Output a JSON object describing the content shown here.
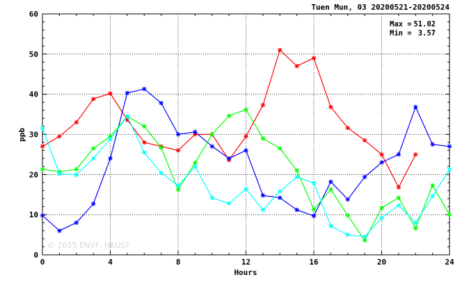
{
  "chart_data": {
    "type": "line",
    "title": "Tuen Mun, 03 20200521-20200524",
    "xlabel": "Hours",
    "ylabel": "ppb",
    "xlim": [
      0,
      24
    ],
    "ylim": [
      0,
      60
    ],
    "xticks": [
      "0",
      "4",
      "8",
      "12",
      "16",
      "20",
      "24"
    ],
    "yticks": [
      "0",
      "10",
      "20",
      "30",
      "40",
      "50",
      "60"
    ],
    "grid": true,
    "legend": "none",
    "annotations": {
      "max_label": "Max =",
      "max_value": "51.02",
      "min_label": "Min =",
      "min_value": "3.57"
    },
    "watermark": "© 2025  ENVF, HKUST",
    "x": [
      0,
      1,
      2,
      3,
      4,
      5,
      6,
      7,
      8,
      9,
      10,
      11,
      12,
      13,
      14,
      15,
      16,
      17,
      18,
      19,
      20,
      21,
      22,
      23,
      24
    ],
    "series": [
      {
        "color": "#ff0000",
        "values": [
          27,
          29.5,
          33,
          38.8,
          40.2,
          33.6,
          28,
          27,
          26,
          30,
          30,
          23.6,
          29.5,
          37.3,
          51,
          47,
          49,
          36.8,
          31.6,
          28.5,
          25,
          16.8,
          25,
          null,
          null
        ]
      },
      {
        "color": "#0000ff",
        "values": [
          9.8,
          6,
          8,
          12.7,
          24,
          40.3,
          41.3,
          37.8,
          30,
          30.6,
          27,
          24,
          26,
          14.8,
          14.2,
          11.2,
          9.7,
          18.2,
          13.8,
          19.4,
          23,
          25,
          36.8,
          27.5,
          27
        ]
      },
      {
        "color": "#00ff00",
        "values": [
          21.3,
          20.7,
          21.3,
          26.5,
          29.5,
          34.5,
          32,
          26.7,
          16.2,
          22.9,
          30,
          34.6,
          36.2,
          29,
          26.5,
          21,
          11.3,
          16.3,
          9.8,
          3.6,
          11.7,
          14.2,
          6.6,
          17.3,
          10
        ]
      },
      {
        "color": "#00ffff",
        "values": [
          31.5,
          20.2,
          19.9,
          24,
          28.8,
          34.5,
          25.5,
          20.4,
          17.2,
          22,
          14.2,
          12.8,
          16.4,
          11.2,
          15.8,
          19.4,
          17.9,
          7.2,
          5,
          4.5,
          9.2,
          12.3,
          8,
          14.6,
          21.3
        ]
      }
    ]
  }
}
